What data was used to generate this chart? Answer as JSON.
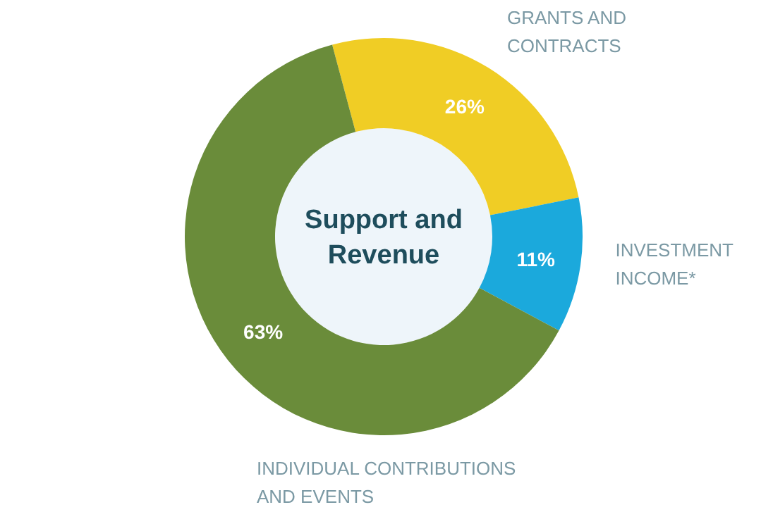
{
  "chart_data": {
    "type": "donut",
    "title": "Support and Revenue",
    "categories": [
      "GRANTS AND CONTRACTS",
      "INVESTMENT INCOME*",
      "INDIVIDUAL CONTRIBUTIONS AND EVENTS"
    ],
    "values": [
      26,
      11,
      63
    ],
    "colors": [
      "#f0cd25",
      "#1ba9dc",
      "#6a8c3a"
    ],
    "value_labels": [
      "26%",
      "11%",
      "63%"
    ],
    "legend": false
  }
}
